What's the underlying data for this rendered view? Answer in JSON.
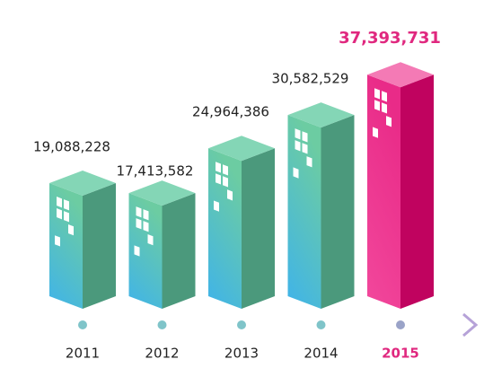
{
  "chart_data": {
    "type": "building-bar",
    "categories": [
      "2011",
      "2012",
      "2013",
      "2014",
      "2015"
    ],
    "values": [
      19088228,
      17413582,
      24964386,
      30582529,
      37393731
    ],
    "value_labels": [
      "19,088,228",
      "17,413,582",
      "24,964,386",
      "30,582,529",
      "37,393,731"
    ],
    "highlight": [
      false,
      false,
      false,
      false,
      true
    ],
    "color": "#5fc3a2",
    "highlight_color": "#e0287f"
  }
}
